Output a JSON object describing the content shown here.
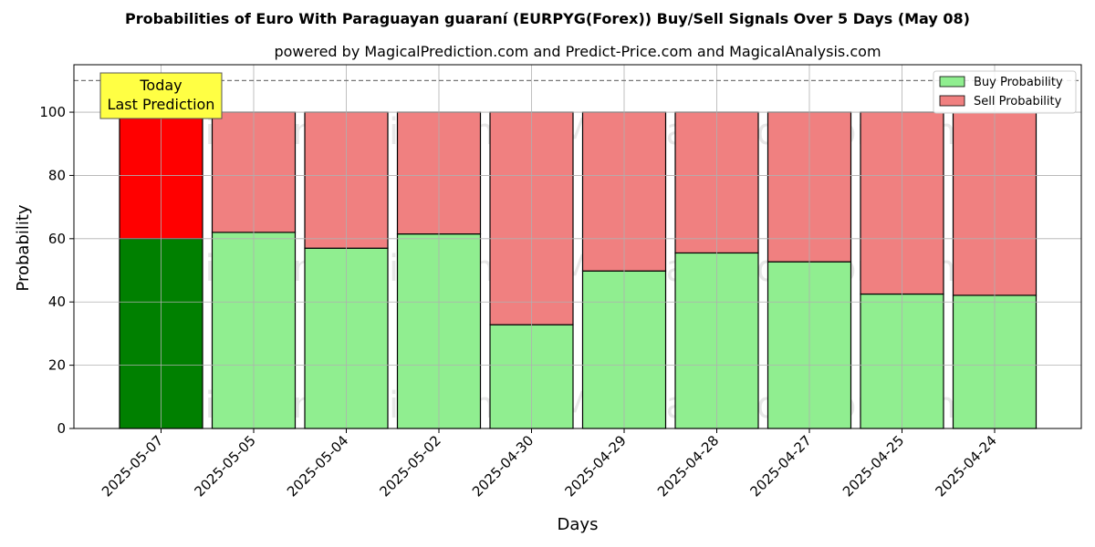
{
  "chart_data": {
    "type": "bar",
    "stacked": true,
    "title": "Probabilities of Euro With Paraguayan guaraní (EURPYG(Forex)) Buy/Sell Signals Over 5 Days (May 08)",
    "subtitle": "powered by MagicalPrediction.com and Predict-Price.com and MagicalAnalysis.com",
    "xlabel": "Days",
    "ylabel": "Probability",
    "ylim": [
      0,
      115
    ],
    "yticks": [
      0,
      20,
      40,
      60,
      80,
      100
    ],
    "grid": true,
    "legend_position": "top-right",
    "categories": [
      "2025-05-07",
      "2025-05-05",
      "2025-05-04",
      "2025-05-02",
      "2025-04-30",
      "2025-04-29",
      "2025-04-28",
      "2025-04-27",
      "2025-04-25",
      "2025-04-24"
    ],
    "series": [
      {
        "name": "Buy Probability",
        "values": [
          60,
          62,
          57,
          61.5,
          32.8,
          49.8,
          55.5,
          52.7,
          42.5,
          42.1
        ]
      },
      {
        "name": "Sell Probability",
        "values": [
          40,
          38,
          43,
          38.5,
          67.2,
          50.2,
          44.5,
          47.3,
          57.5,
          57.9
        ]
      }
    ],
    "colors": {
      "buy": "#90ee90",
      "sell": "#f08080",
      "buy_highlight": "#008000",
      "sell_highlight": "#ff0000",
      "annotation_bg": "#ffff44"
    },
    "threshold_line": 110,
    "annotation": {
      "line1": "Today",
      "line2": "Last Prediction"
    },
    "watermarks": [
      "MagicalAnalysis.com",
      "MagicalPrediction.com"
    ]
  }
}
